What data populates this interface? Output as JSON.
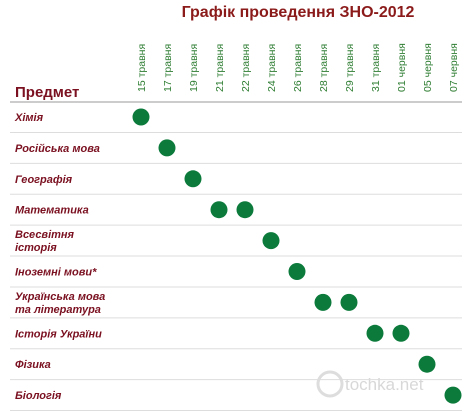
{
  "title": "Графік проведення ЗНО-2012",
  "column_header": "Предмет",
  "watermark": "tochka.net",
  "dates": [
    "15 травня",
    "17 травня",
    "19 травня",
    "21 травня",
    "22 травня",
    "24 травня",
    "26 травня",
    "28 травня",
    "29 травня",
    "31 травня",
    "01 червня",
    "05 червня",
    "07 червня"
  ],
  "rows": [
    {
      "subject": [
        "Хімія"
      ],
      "dates": [
        "15 травня"
      ]
    },
    {
      "subject": [
        "Російська мова"
      ],
      "dates": [
        "17 травня"
      ]
    },
    {
      "subject": [
        "Географія"
      ],
      "dates": [
        "19 травня"
      ]
    },
    {
      "subject": [
        "Математика"
      ],
      "dates": [
        "21 травня",
        "22 травня"
      ]
    },
    {
      "subject": [
        "Всесвітня",
        "історія"
      ],
      "dates": [
        "24 травня"
      ]
    },
    {
      "subject": [
        "Іноземні мови*"
      ],
      "dates": [
        "26 травня"
      ]
    },
    {
      "subject": [
        "Українська мова",
        "та література"
      ],
      "dates": [
        "28 травня",
        "29 травня"
      ]
    },
    {
      "subject": [
        "Історія України"
      ],
      "dates": [
        "31 травня",
        "01 червня"
      ]
    },
    {
      "subject": [
        "Фізика"
      ],
      "dates": [
        "05 червня"
      ]
    },
    {
      "subject": [
        "Біологія"
      ],
      "dates": [
        "07 червня"
      ]
    }
  ]
}
